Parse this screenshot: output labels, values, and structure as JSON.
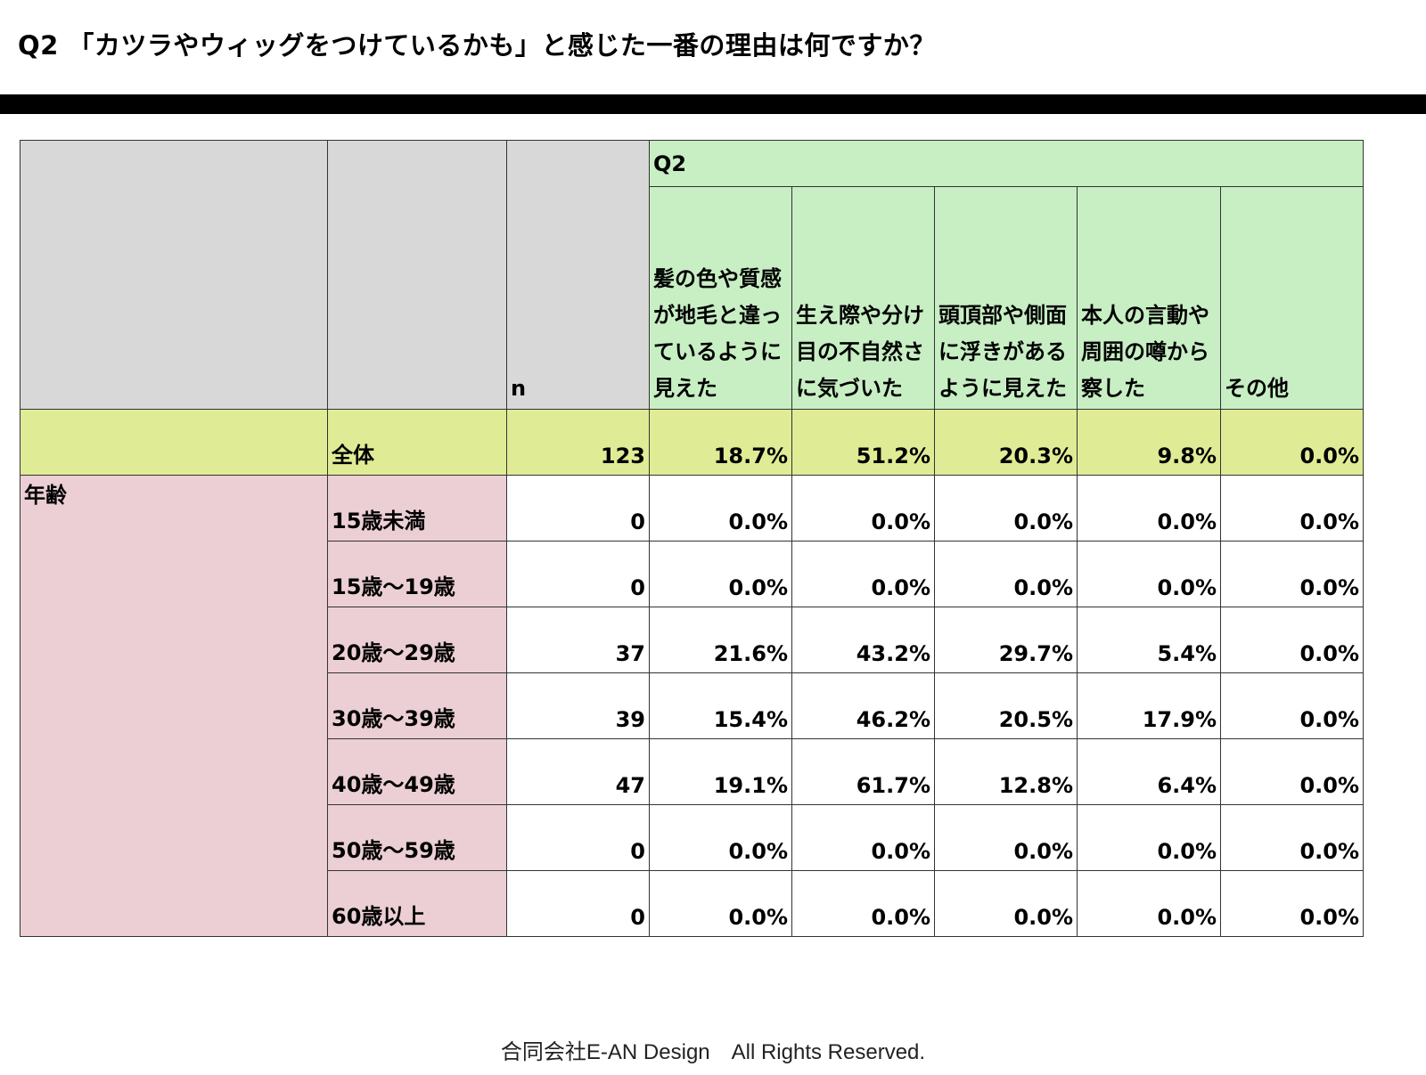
{
  "page": {
    "title": "Q2 「カツラやウィッグをつけているかも」と感じた一番の理由は何ですか？",
    "footer": "合同会社E-AN Design　All Rights Reserved."
  },
  "table": {
    "n_header": "n",
    "question_label": "Q2",
    "columns": [
      "髪の色や質感が地毛と違っているように見えた",
      "生え際や分け目の不自然さに気づいた",
      "頭頂部や側面に浮きがあるように見えた",
      "本人の言動や周囲の噂から察した",
      "その他"
    ],
    "total": {
      "label": "全体",
      "n": "123",
      "values": [
        "18.7%",
        "51.2%",
        "20.3%",
        "9.8%",
        "0.0%"
      ]
    },
    "group_label": "年齢",
    "rows": [
      {
        "label": "15歳未満",
        "n": "0",
        "values": [
          "0.0%",
          "0.0%",
          "0.0%",
          "0.0%",
          "0.0%"
        ]
      },
      {
        "label": "15歳〜19歳",
        "n": "0",
        "values": [
          "0.0%",
          "0.0%",
          "0.0%",
          "0.0%",
          "0.0%"
        ]
      },
      {
        "label": "20歳〜29歳",
        "n": "37",
        "values": [
          "21.6%",
          "43.2%",
          "29.7%",
          "5.4%",
          "0.0%"
        ]
      },
      {
        "label": "30歳〜39歳",
        "n": "39",
        "values": [
          "15.4%",
          "46.2%",
          "20.5%",
          "17.9%",
          "0.0%"
        ]
      },
      {
        "label": "40歳〜49歳",
        "n": "47",
        "values": [
          "19.1%",
          "61.7%",
          "12.8%",
          "6.4%",
          "0.0%"
        ]
      },
      {
        "label": "50歳〜59歳",
        "n": "0",
        "values": [
          "0.0%",
          "0.0%",
          "0.0%",
          "0.0%",
          "0.0%"
        ]
      },
      {
        "label": "60歳以上",
        "n": "0",
        "values": [
          "0.0%",
          "0.0%",
          "0.0%",
          "0.0%",
          "0.0%"
        ]
      }
    ]
  },
  "colors": {
    "header_grey": "#d8d8d8",
    "header_green": "#c8efc4",
    "total_yellow": "#e0ec95",
    "group_pink": "#ebcfd4"
  }
}
